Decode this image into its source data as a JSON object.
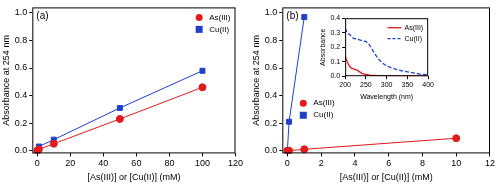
{
  "chart_data": [
    {
      "type": "scatter",
      "annotations": [
        "(a)"
      ],
      "x_label": "[As(III)] or [Cu(II)] (mM)",
      "y_label": "Absorbance at 254 nm",
      "xlim": [
        -3,
        120
      ],
      "xticks": [
        0,
        20,
        40,
        60,
        80,
        100,
        120
      ],
      "ylim": [
        -0.02,
        1.04
      ],
      "yticks": [
        {
          "value": 0,
          "label": "0.0"
        },
        0.2,
        0.4,
        0.6,
        0.8,
        {
          "value": 1,
          "label": "1.0"
        }
      ],
      "grid": false,
      "legend": "top-right",
      "series": [
        {
          "name": "As(III)",
          "color": "#e31a1c",
          "marker": "circle",
          "line_style": "solid",
          "x": [
            0,
            1,
            10,
            50,
            100
          ],
          "values": [
            0.0,
            0.01,
            0.05,
            0.23,
            0.46
          ]
        },
        {
          "name": "Cu(II)",
          "color": "#1f3fcf",
          "marker": "square",
          "line_style": "solid",
          "x": [
            0,
            1,
            10,
            50,
            100
          ],
          "values": [
            0.0,
            0.03,
            0.08,
            0.31,
            0.58
          ]
        }
      ]
    },
    {
      "type": "scatter",
      "annotations": [
        "(b)"
      ],
      "x_label": "[As(III)] or [Cu(II)] (mM)",
      "y_label": "Absorbance at 254 nm",
      "xlim": [
        -0.3,
        12
      ],
      "xticks": [
        0,
        2,
        4,
        6,
        8,
        10,
        12
      ],
      "ylim": [
        -0.02,
        1.04
      ],
      "yticks": [
        {
          "value": 0,
          "label": "0.0"
        },
        0.2,
        0.4,
        0.6,
        0.8,
        {
          "value": 1,
          "label": "1.0"
        }
      ],
      "grid": false,
      "legend": "bottom-left",
      "series": [
        {
          "name": "As(III)",
          "color": "#e31a1c",
          "marker": "circle",
          "line_style": "solid",
          "x": [
            0,
            0.1,
            1,
            10
          ],
          "values": [
            0.0,
            0.0,
            0.01,
            0.09
          ]
        },
        {
          "name": "Cu(II)",
          "color": "#1f3fcf",
          "marker": "square",
          "line_style": "solid",
          "x": [
            0,
            0.1,
            1
          ],
          "values": [
            0.0,
            0.21,
            0.97
          ]
        }
      ]
    },
    {
      "type": "line",
      "x_label": "Wavelength (nm)",
      "y_label": "Absorbance",
      "xlim": [
        200,
        400
      ],
      "xticks": [
        200,
        250,
        300,
        350,
        400
      ],
      "ylim": [
        0,
        0.4
      ],
      "yticks": [
        {
          "value": 0,
          "label": "0.0"
        },
        0.1,
        0.2,
        0.3,
        0.4
      ],
      "grid": false,
      "legend": "top-right",
      "series": [
        {
          "name": "As(III)",
          "color": "#e31a1c",
          "marker": "none",
          "line_style": "solid",
          "x": [
            200,
            205,
            210,
            215,
            220,
            225,
            230,
            240,
            250,
            260,
            280,
            300,
            350,
            400
          ],
          "values": [
            0.14,
            0.1,
            0.07,
            0.055,
            0.05,
            0.045,
            0.04,
            0.02,
            0.012,
            0.008,
            0.004,
            0.002,
            0.001,
            0.0
          ]
        },
        {
          "name": "Cu(II)",
          "color": "#1f3fcf",
          "marker": "none",
          "line_style": "dashed",
          "x": [
            200,
            205,
            210,
            220,
            230,
            240,
            250,
            255,
            260,
            270,
            280,
            290,
            300,
            320,
            340,
            360,
            380,
            400
          ],
          "values": [
            0.33,
            0.3,
            0.29,
            0.26,
            0.255,
            0.245,
            0.24,
            0.23,
            0.21,
            0.16,
            0.12,
            0.09,
            0.07,
            0.05,
            0.035,
            0.025,
            0.015,
            0.01
          ]
        }
      ]
    }
  ]
}
